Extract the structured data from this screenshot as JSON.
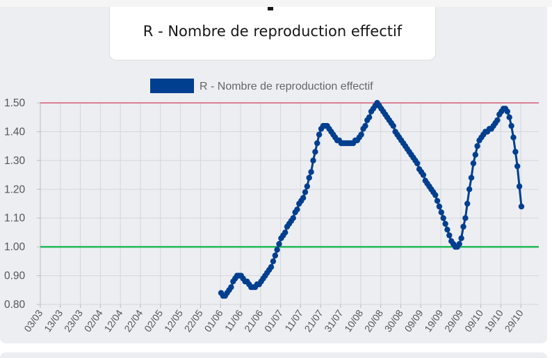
{
  "header": {
    "title": "R - Nombre de reproduction effectif"
  },
  "colors": {
    "series": "#003f8f",
    "upper_line": "#d65a74",
    "reference_line": "#1db954",
    "grid": "#d4d6db",
    "background": "#eceef2"
  },
  "chart_data": {
    "type": "line",
    "title": "R - Nombre de reproduction effectif",
    "legend": {
      "position": "top",
      "entries": [
        "R - Nombre de reproduction effectif"
      ]
    },
    "grid": true,
    "ylim": [
      0.8,
      1.5
    ],
    "y_ticks": [
      "0.80",
      "0.90",
      "1.00",
      "1.10",
      "1.20",
      "1.30",
      "1.40",
      "1.50"
    ],
    "x_ticks": [
      "03/03",
      "13/03",
      "23/03",
      "02/04",
      "12/04",
      "22/04",
      "02/05",
      "12/05",
      "22/05",
      "01/06",
      "11/06",
      "21/06",
      "01/07",
      "11/07",
      "21/07",
      "31/07",
      "10/08",
      "20/08",
      "30/08",
      "09/09",
      "19/09",
      "29/09",
      "09/10",
      "19/10",
      "29/10"
    ],
    "reference_lines": [
      {
        "value": 1.5,
        "color": "#d65a74"
      },
      {
        "value": 1.0,
        "color": "#1db954"
      }
    ],
    "series": [
      {
        "name": "R - Nombre de reproduction effectif",
        "color": "#003f8f",
        "start_date": "01/06",
        "values": [
          0.84,
          0.83,
          0.83,
          0.84,
          0.85,
          0.86,
          0.88,
          0.89,
          0.9,
          0.9,
          0.9,
          0.89,
          0.88,
          0.88,
          0.87,
          0.86,
          0.86,
          0.86,
          0.87,
          0.87,
          0.88,
          0.89,
          0.9,
          0.91,
          0.92,
          0.93,
          0.95,
          0.97,
          0.99,
          1.01,
          1.03,
          1.04,
          1.05,
          1.07,
          1.08,
          1.09,
          1.1,
          1.12,
          1.13,
          1.15,
          1.16,
          1.17,
          1.19,
          1.21,
          1.24,
          1.26,
          1.3,
          1.33,
          1.36,
          1.39,
          1.41,
          1.42,
          1.42,
          1.42,
          1.41,
          1.4,
          1.39,
          1.38,
          1.37,
          1.37,
          1.36,
          1.36,
          1.36,
          1.36,
          1.36,
          1.36,
          1.36,
          1.37,
          1.37,
          1.38,
          1.39,
          1.41,
          1.42,
          1.44,
          1.45,
          1.47,
          1.48,
          1.49,
          1.5,
          1.49,
          1.48,
          1.47,
          1.46,
          1.45,
          1.44,
          1.43,
          1.42,
          1.4,
          1.39,
          1.38,
          1.37,
          1.36,
          1.35,
          1.34,
          1.33,
          1.32,
          1.31,
          1.3,
          1.29,
          1.27,
          1.26,
          1.25,
          1.23,
          1.22,
          1.21,
          1.2,
          1.19,
          1.18,
          1.16,
          1.14,
          1.12,
          1.1,
          1.08,
          1.06,
          1.04,
          1.02,
          1.01,
          1.0,
          1.0,
          1.01,
          1.03,
          1.07,
          1.1,
          1.15,
          1.2,
          1.24,
          1.29,
          1.32,
          1.35,
          1.37,
          1.38,
          1.39,
          1.4,
          1.4,
          1.41,
          1.41,
          1.42,
          1.43,
          1.44,
          1.46,
          1.47,
          1.48,
          1.48,
          1.47,
          1.45,
          1.42,
          1.38,
          1.33,
          1.28,
          1.21,
          1.14
        ]
      }
    ]
  }
}
